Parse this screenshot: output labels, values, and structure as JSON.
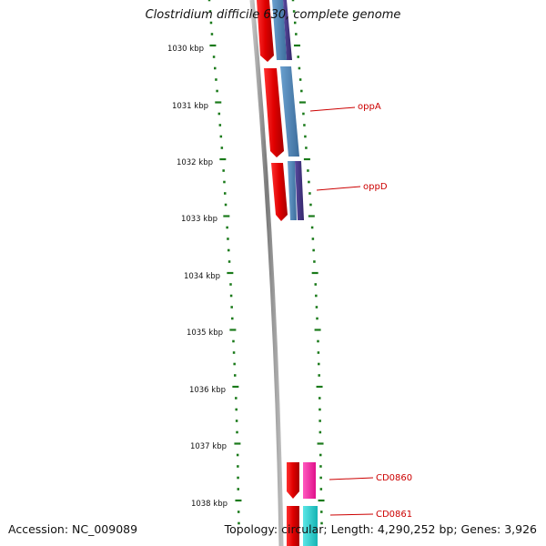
{
  "title": "Clostridium difficile 630, complete genome",
  "footer": {
    "accession": "Accession: NC_009089",
    "topology": "Topology: circular; Length: 4,290,252 bp; Genes: 3,926"
  },
  "ruler": {
    "unit": "kbp",
    "ticks": [
      "1030 kbp",
      "1031 kbp",
      "1032 kbp",
      "1033 kbp",
      "1034 kbp",
      "1035 kbp",
      "1036 kbp",
      "1037 kbp",
      "1038 kbp"
    ]
  },
  "gene_labels": [
    "oppA",
    "oppD",
    "CD0860",
    "CD0861"
  ],
  "colors": {
    "backbone": "#8a8a8a",
    "ruler": "#1a7a1a",
    "label": "#cc0000",
    "gene_red": "#e60000",
    "gene_blue": "#4a7fb0",
    "gene_navy": "#4a3a8a",
    "gene_magenta": "#ff1aa0",
    "gene_cyan": "#22cccc"
  }
}
